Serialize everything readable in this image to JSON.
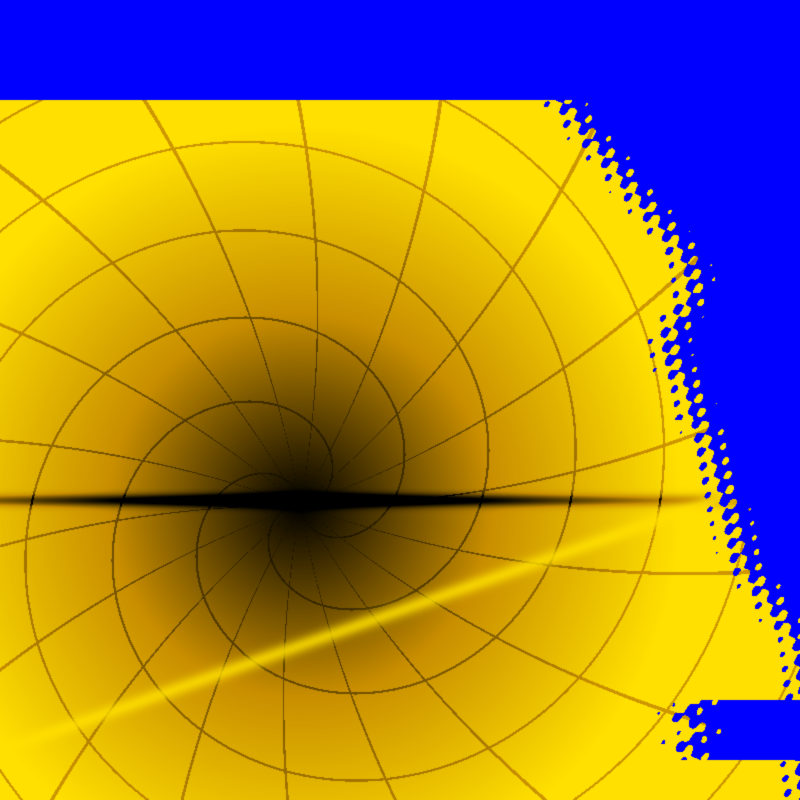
{
  "image": {
    "subject": "fractal-render",
    "colors": {
      "background": "#0000ff",
      "gold_dark": "#000000",
      "gold_mid": "#c88e00",
      "gold_bright": "#ffe000"
    }
  }
}
